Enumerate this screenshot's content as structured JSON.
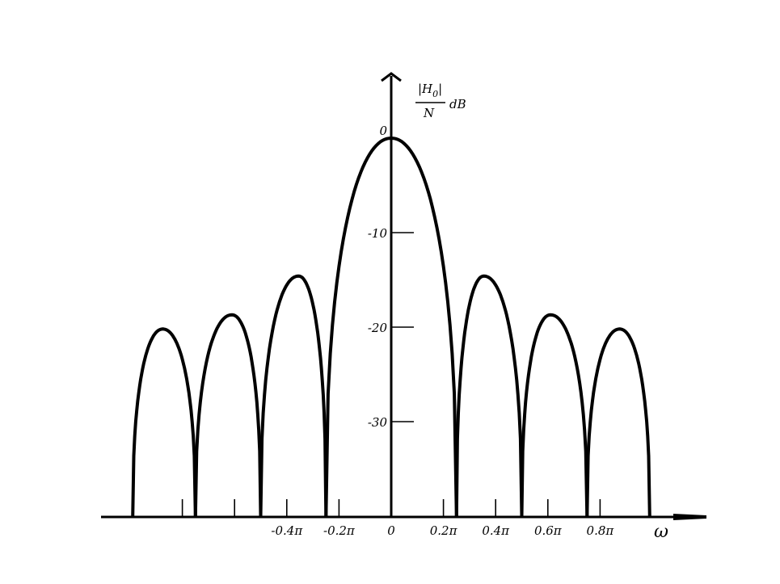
{
  "chart_data": {
    "type": "line",
    "ylabel": {
      "numerator": "|H",
      "subscript": "0",
      "bar": "|",
      "denominator": "N",
      "unit": "dB"
    },
    "xlabel": "ω",
    "x_tick_labels": [
      "-0.4π",
      "-0.2π",
      "0",
      "0.2π",
      "0.4π",
      "0.6π",
      "0.8π"
    ],
    "x_tick_values": [
      -0.4,
      -0.2,
      0,
      0.2,
      0.4,
      0.6,
      0.8
    ],
    "x_minor_ticks": [
      -0.8,
      -0.6
    ],
    "y_tick_labels": [
      "0",
      "-10",
      "-20",
      "-30"
    ],
    "y_tick_values": [
      0,
      -10,
      -20,
      -30
    ],
    "xlim": [
      -1.1,
      1.2
    ],
    "ylim": [
      -40,
      4
    ],
    "grid": false,
    "series": [
      {
        "values": [
          {
            "lobe": "main",
            "x_start": -0.25,
            "x_end": 0.25,
            "x_peak": 0,
            "peak_db": 0
          },
          {
            "lobe": "right-1",
            "x_start": 0.25,
            "x_end": 0.5,
            "x_peak": 0.355,
            "peak_db": -14.6
          },
          {
            "lobe": "right-2",
            "x_start": 0.5,
            "x_end": 0.75,
            "x_peak": 0.61,
            "peak_db": -18.7
          },
          {
            "lobe": "right-3",
            "x_start": 0.75,
            "x_end": 0.99,
            "x_peak": 0.875,
            "peak_db": -20.2
          },
          {
            "lobe": "left-1",
            "x_start": -0.5,
            "x_end": -0.25,
            "x_peak": -0.355,
            "peak_db": -14.6
          },
          {
            "lobe": "left-2",
            "x_start": -0.75,
            "x_end": -0.5,
            "x_peak": -0.61,
            "peak_db": -18.7
          },
          {
            "lobe": "left-3",
            "x_start": -0.99,
            "x_end": -0.75,
            "x_peak": -0.875,
            "peak_db": -20.2
          }
        ]
      }
    ]
  }
}
